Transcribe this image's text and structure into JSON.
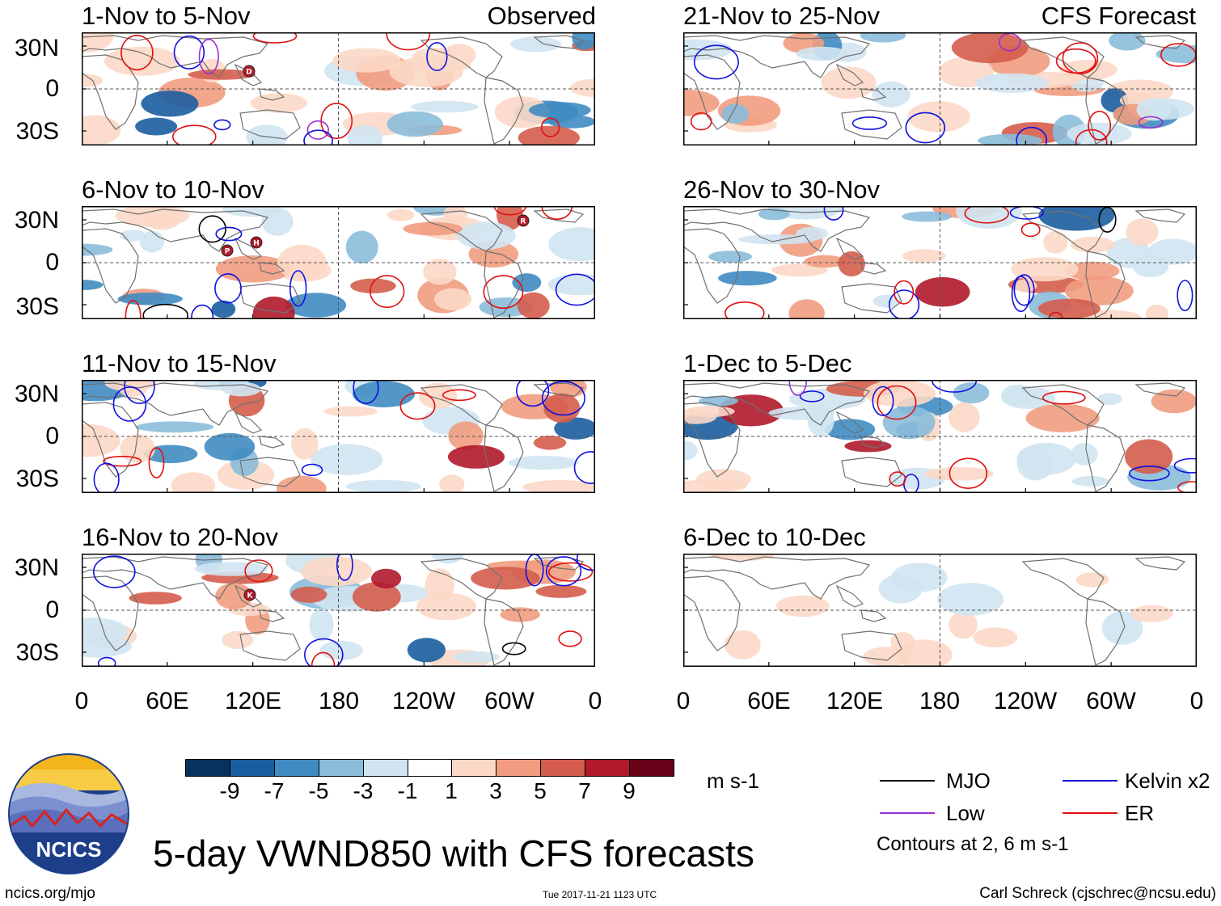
{
  "header": {
    "observed_label": "Observed",
    "forecast_label": "CFS Forecast"
  },
  "panels": {
    "left": [
      {
        "title": "1-Nov to 5-Nov"
      },
      {
        "title": "6-Nov to 10-Nov"
      },
      {
        "title": "11-Nov to 15-Nov"
      },
      {
        "title": "16-Nov to 20-Nov"
      }
    ],
    "right": [
      {
        "title": "21-Nov to 25-Nov"
      },
      {
        "title": "26-Nov to 30-Nov"
      },
      {
        "title": "1-Dec to 5-Dec"
      },
      {
        "title": "6-Dec to 10-Dec"
      }
    ]
  },
  "axes": {
    "y_labels": [
      "30N",
      "0",
      "30S"
    ],
    "x_labels": [
      "0",
      "60E",
      "120E",
      "180",
      "120W",
      "60W",
      "0"
    ]
  },
  "colorbar": {
    "unit": "m s-1",
    "labels": [
      "-9",
      "-7",
      "-5",
      "-3",
      "-1",
      "1",
      "3",
      "5",
      "7",
      "9"
    ],
    "colors": [
      "#08315e",
      "#1b5ea0",
      "#3f8cc2",
      "#8bbdda",
      "#d0e4f1",
      "#ffffff",
      "#fcd8c6",
      "#f19c80",
      "#d45d4d",
      "#b01a2b",
      "#6a0319"
    ]
  },
  "legend": {
    "mjo": "MJO",
    "kelvin": "Kelvin x2",
    "low": "Low",
    "er": "ER",
    "contours_note": "Contours at 2, 6 m s-1",
    "colors": {
      "mjo": "#000000",
      "kelvin": "#1010e0",
      "low": "#9a30d0",
      "er": "#e01010"
    }
  },
  "title": "5-day VWND850 with CFS forecasts",
  "logo": {
    "text": "NCICS"
  },
  "footer": {
    "url": "ncics.org/mjo",
    "timestamp": "Tue 2017-11-21 1123 UTC",
    "author": "Carl Schreck (cjschrec@ncsu.edu)"
  },
  "storm_markers": {
    "panel1": [
      "D"
    ],
    "panel2": [
      "P",
      "H",
      "R"
    ],
    "panel4": [
      "K"
    ]
  }
}
